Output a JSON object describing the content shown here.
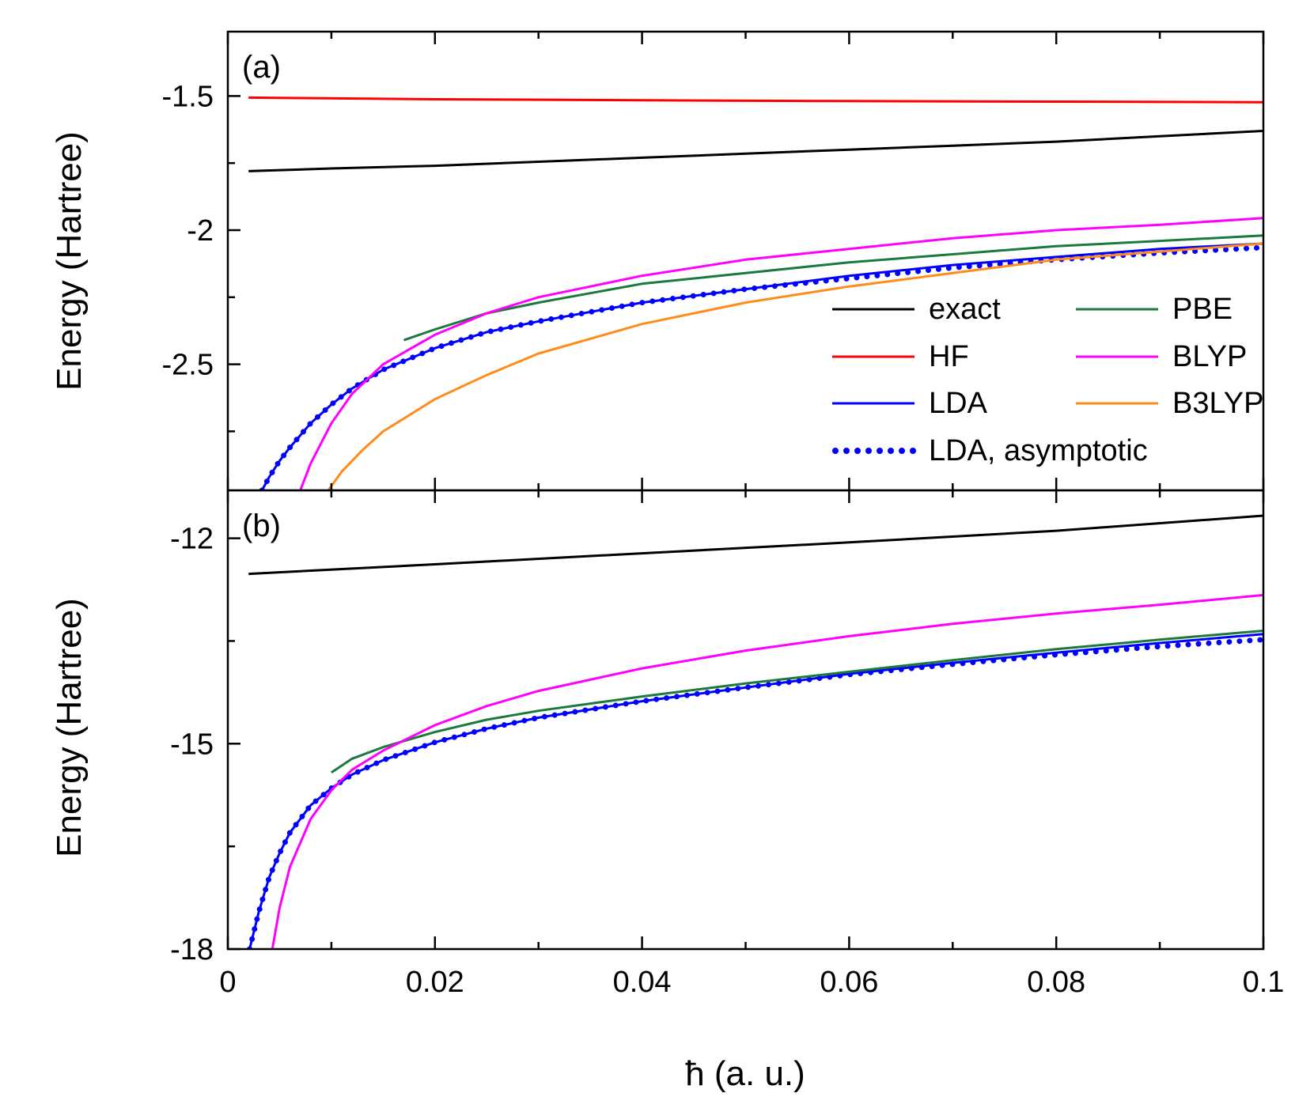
{
  "chart_data": [
    {
      "panel": "(a)",
      "type": "line",
      "xlabel": "ħ (a. u.)",
      "ylabel": "Energy (Hartree)",
      "xlim": [
        0,
        0.1
      ],
      "ylim": [
        -2.97,
        -1.26
      ],
      "xticks": [
        0,
        0.02,
        0.04,
        0.06,
        0.08,
        0.1
      ],
      "yticks": [
        -2.5,
        -2,
        -1.5
      ],
      "ytick_labels": [
        "-2.5",
        "-2",
        "-1.5"
      ],
      "legend": {
        "placement": "lower-right",
        "columns": 2
      },
      "series": [
        {
          "name": "exact",
          "color": "#000000",
          "style": "solid",
          "x": [
            0.002,
            0.01,
            0.02,
            0.03,
            0.04,
            0.05,
            0.06,
            0.07,
            0.08,
            0.09,
            0.1
          ],
          "y": [
            -1.78,
            -1.77,
            -1.76,
            -1.745,
            -1.73,
            -1.715,
            -1.7,
            -1.685,
            -1.67,
            -1.65,
            -1.63
          ]
        },
        {
          "name": "HF",
          "color": "#ff0000",
          "style": "solid",
          "x": [
            0.002,
            0.02,
            0.04,
            0.06,
            0.08,
            0.1
          ],
          "y": [
            -1.506,
            -1.512,
            -1.516,
            -1.519,
            -1.521,
            -1.523
          ]
        },
        {
          "name": "LDA",
          "color": "#0000ff",
          "style": "solid",
          "x": [
            0.0033,
            0.004,
            0.005,
            0.006,
            0.008,
            0.01,
            0.012,
            0.015,
            0.02,
            0.025,
            0.03,
            0.04,
            0.05,
            0.06,
            0.07,
            0.08,
            0.09,
            0.1
          ],
          "y": [
            -2.97,
            -2.92,
            -2.86,
            -2.81,
            -2.72,
            -2.65,
            -2.59,
            -2.52,
            -2.44,
            -2.38,
            -2.34,
            -2.27,
            -2.22,
            -2.17,
            -2.13,
            -2.1,
            -2.07,
            -2.05
          ]
        },
        {
          "name": "LDA, asymptotic",
          "color": "#0000ff",
          "style": "dotted",
          "x": [
            0.0033,
            0.004,
            0.005,
            0.006,
            0.008,
            0.01,
            0.012,
            0.015,
            0.02,
            0.025,
            0.03,
            0.04,
            0.05,
            0.06,
            0.07,
            0.08,
            0.09,
            0.1
          ],
          "y": [
            -2.97,
            -2.92,
            -2.86,
            -2.81,
            -2.72,
            -2.65,
            -2.59,
            -2.52,
            -2.44,
            -2.38,
            -2.34,
            -2.27,
            -2.22,
            -2.18,
            -2.14,
            -2.11,
            -2.085,
            -2.065
          ]
        },
        {
          "name": "PBE",
          "color": "#1a7a3c",
          "style": "solid",
          "x": [
            0.017,
            0.02,
            0.025,
            0.03,
            0.04,
            0.05,
            0.06,
            0.07,
            0.08,
            0.09,
            0.1
          ],
          "y": [
            -2.41,
            -2.37,
            -2.31,
            -2.27,
            -2.2,
            -2.16,
            -2.12,
            -2.09,
            -2.06,
            -2.04,
            -2.02
          ]
        },
        {
          "name": "BLYP",
          "color": "#ff00ff",
          "style": "solid",
          "x": [
            0.007,
            0.008,
            0.01,
            0.012,
            0.015,
            0.02,
            0.025,
            0.03,
            0.04,
            0.05,
            0.06,
            0.07,
            0.08,
            0.09,
            0.1
          ],
          "y": [
            -2.97,
            -2.87,
            -2.72,
            -2.61,
            -2.5,
            -2.39,
            -2.31,
            -2.25,
            -2.17,
            -2.11,
            -2.07,
            -2.03,
            -2.0,
            -1.98,
            -1.955
          ]
        },
        {
          "name": "B3LYP",
          "color": "#ff8c1a",
          "style": "solid",
          "x": [
            0.0097,
            0.011,
            0.013,
            0.015,
            0.02,
            0.025,
            0.03,
            0.04,
            0.05,
            0.06,
            0.07,
            0.08,
            0.09,
            0.1
          ],
          "y": [
            -2.97,
            -2.9,
            -2.82,
            -2.75,
            -2.63,
            -2.54,
            -2.46,
            -2.35,
            -2.27,
            -2.21,
            -2.16,
            -2.11,
            -2.08,
            -2.05
          ]
        }
      ]
    },
    {
      "panel": "(b)",
      "type": "line",
      "xlabel": "ħ (a. u.)",
      "ylabel": "Energy (Hartree)",
      "xlim": [
        0,
        0.1
      ],
      "ylim": [
        -18,
        -11.3
      ],
      "xticks": [
        0,
        0.02,
        0.04,
        0.06,
        0.08,
        0.1
      ],
      "xtick_labels": [
        "0",
        "0.02",
        "0.04",
        "0.06",
        "0.08",
        "0.1"
      ],
      "yticks": [
        -18,
        -15,
        -12
      ],
      "ytick_labels": [
        "-18",
        "-15",
        "-12"
      ],
      "series": [
        {
          "name": "exact",
          "color": "#000000",
          "style": "solid",
          "x": [
            0.002,
            0.02,
            0.04,
            0.06,
            0.08,
            0.1
          ],
          "y": [
            -12.52,
            -12.38,
            -12.22,
            -12.06,
            -11.89,
            -11.67
          ]
        },
        {
          "name": "LDA",
          "color": "#0000ff",
          "style": "solid",
          "x": [
            0.0021,
            0.003,
            0.004,
            0.005,
            0.006,
            0.008,
            0.01,
            0.012,
            0.015,
            0.02,
            0.025,
            0.03,
            0.04,
            0.05,
            0.06,
            0.07,
            0.08,
            0.09,
            0.1
          ],
          "y": [
            -18.0,
            -17.45,
            -16.95,
            -16.6,
            -16.3,
            -15.9,
            -15.65,
            -15.45,
            -15.24,
            -14.98,
            -14.78,
            -14.62,
            -14.38,
            -14.18,
            -13.98,
            -13.82,
            -13.67,
            -13.53,
            -13.4
          ]
        },
        {
          "name": "LDA, asymptotic",
          "color": "#0000ff",
          "style": "dotted",
          "x": [
            0.0021,
            0.003,
            0.004,
            0.005,
            0.006,
            0.008,
            0.01,
            0.012,
            0.015,
            0.02,
            0.025,
            0.03,
            0.04,
            0.05,
            0.06,
            0.07,
            0.08,
            0.09,
            0.1
          ],
          "y": [
            -18.0,
            -17.45,
            -16.95,
            -16.6,
            -16.3,
            -15.9,
            -15.65,
            -15.45,
            -15.24,
            -14.98,
            -14.78,
            -14.62,
            -14.38,
            -14.18,
            -13.99,
            -13.84,
            -13.7,
            -13.58,
            -13.48
          ]
        },
        {
          "name": "PBE",
          "color": "#1a7a3c",
          "style": "solid",
          "x": [
            0.01,
            0.012,
            0.015,
            0.02,
            0.025,
            0.03,
            0.04,
            0.05,
            0.06,
            0.07,
            0.08,
            0.09,
            0.1
          ],
          "y": [
            -15.42,
            -15.22,
            -15.05,
            -14.83,
            -14.65,
            -14.52,
            -14.31,
            -14.12,
            -13.95,
            -13.78,
            -13.62,
            -13.48,
            -13.35
          ]
        },
        {
          "name": "BLYP",
          "color": "#ff00ff",
          "style": "solid",
          "x": [
            0.0043,
            0.005,
            0.006,
            0.008,
            0.01,
            0.012,
            0.015,
            0.02,
            0.025,
            0.03,
            0.04,
            0.05,
            0.06,
            0.07,
            0.08,
            0.09,
            0.1
          ],
          "y": [
            -18.0,
            -17.4,
            -16.8,
            -16.1,
            -15.68,
            -15.38,
            -15.1,
            -14.73,
            -14.45,
            -14.23,
            -13.9,
            -13.64,
            -13.43,
            -13.25,
            -13.1,
            -12.97,
            -12.83
          ]
        }
      ]
    }
  ]
}
